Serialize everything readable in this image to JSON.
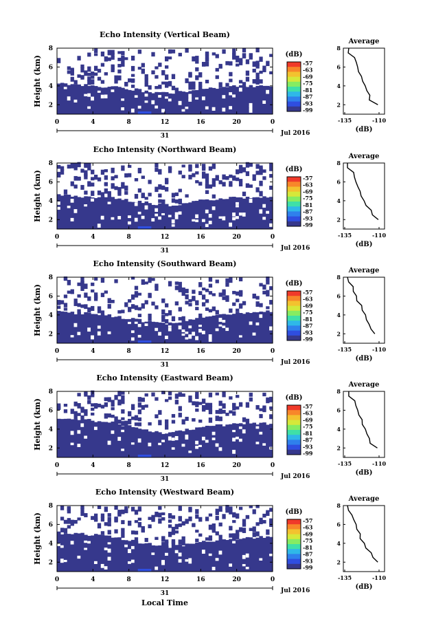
{
  "figure": {
    "xlabel_bottom": "Local Time",
    "colorbar_unit": "(dB)",
    "colorbar_ticks": [
      "-57",
      "-63",
      "-69",
      "-75",
      "-81",
      "-87",
      "-93",
      "-99"
    ],
    "colorbar_colors": [
      "#f03a2a",
      "#f8862a",
      "#f3c22f",
      "#d6e83a",
      "#86ec62",
      "#3fe0a8",
      "#2fb8e8",
      "#2f80ec",
      "#2f4ee0",
      "#36388c"
    ],
    "heatmap_fill": "#36388c",
    "low_fill": "#2f4ee0",
    "avg_title": "Average",
    "avg_xlabel": "(dB)",
    "avg_xticks": [
      "-135",
      "-110"
    ],
    "date_label": "Jul 2016",
    "day_label": "31"
  },
  "chart_data": [
    {
      "type": "heatmap",
      "title": "Echo Intensity (Vertical Beam)",
      "ylabel": "Height (km)",
      "yticks": [
        "8",
        "6",
        "4",
        "2"
      ],
      "xticks": [
        "0",
        "4",
        "8",
        "12",
        "16",
        "20",
        "0"
      ],
      "xlim": [
        0,
        24
      ],
      "ylim": [
        1,
        8
      ],
      "echo_top_km": [
        4.2,
        4.1,
        4.0,
        3.9,
        3.7,
        3.4,
        3.2,
        3.4,
        3.6,
        3.8,
        4.0,
        4.0,
        4.0
      ],
      "average_profile": {
        "height_km": [
          8,
          7,
          6,
          5,
          4,
          3,
          2
        ],
        "db": [
          -133,
          -129,
          -126,
          -123,
          -121,
          -118,
          -112
        ]
      }
    },
    {
      "type": "heatmap",
      "title": "Echo Intensity (Northward Beam)",
      "ylabel": "Height (km)",
      "yticks": [
        "8",
        "6",
        "4",
        "2"
      ],
      "xticks": [
        "0",
        "4",
        "8",
        "12",
        "16",
        "20",
        "0"
      ],
      "xlim": [
        0,
        24
      ],
      "ylim": [
        1,
        8
      ],
      "echo_top_km": [
        4.6,
        4.5,
        4.4,
        4.3,
        4.0,
        3.8,
        3.5,
        3.7,
        4.0,
        4.2,
        4.3,
        4.4,
        4.5
      ],
      "average_profile": {
        "height_km": [
          8,
          7,
          6,
          5,
          4,
          3,
          2
        ],
        "db": [
          -134,
          -130,
          -127,
          -124,
          -121,
          -117,
          -111
        ]
      }
    },
    {
      "type": "heatmap",
      "title": "Echo Intensity (Southward Beam)",
      "ylabel": "Height (km)",
      "yticks": [
        "8",
        "6",
        "4",
        "2"
      ],
      "xticks": [
        "0",
        "4",
        "8",
        "12",
        "16",
        "20",
        "0"
      ],
      "xlim": [
        0,
        24
      ],
      "ylim": [
        1,
        8
      ],
      "echo_top_km": [
        4.3,
        4.2,
        4.1,
        3.9,
        3.6,
        3.3,
        3.1,
        3.3,
        3.7,
        4.0,
        4.2,
        4.3,
        4.4
      ],
      "average_profile": {
        "height_km": [
          8,
          7,
          6,
          5,
          4,
          3,
          2
        ],
        "db": [
          -134,
          -130,
          -127,
          -124,
          -121,
          -118,
          -113
        ]
      }
    },
    {
      "type": "heatmap",
      "title": "Echo Intensity (Eastward Beam)",
      "ylabel": "Height (km)",
      "yticks": [
        "8",
        "6",
        "4",
        "2"
      ],
      "xticks": [
        "0",
        "4",
        "8",
        "12",
        "16",
        "20",
        "0"
      ],
      "xlim": [
        0,
        24
      ],
      "ylim": [
        1,
        8
      ],
      "echo_top_km": [
        5.0,
        5.0,
        4.9,
        4.7,
        4.3,
        3.9,
        3.6,
        3.9,
        4.2,
        4.4,
        4.5,
        4.6,
        4.6
      ],
      "average_profile": {
        "height_km": [
          8,
          7,
          6,
          5,
          4,
          3,
          2
        ],
        "db": [
          -133,
          -129,
          -126,
          -123,
          -120,
          -117,
          -112
        ]
      }
    },
    {
      "type": "heatmap",
      "title": "Echo Intensity (Westward Beam)",
      "ylabel": "Height (km)",
      "yticks": [
        "8",
        "6",
        "4",
        "2"
      ],
      "xticks": [
        "0",
        "4",
        "8",
        "12",
        "16",
        "20",
        "0"
      ],
      "xlim": [
        0,
        24
      ],
      "ylim": [
        1,
        8
      ],
      "echo_top_km": [
        5.1,
        5.0,
        4.9,
        4.7,
        4.3,
        4.0,
        3.6,
        3.8,
        4.1,
        4.3,
        4.5,
        4.6,
        4.7
      ],
      "average_profile": {
        "height_km": [
          8,
          7,
          6,
          5,
          4,
          3,
          2
        ],
        "db": [
          -134,
          -130,
          -127,
          -124,
          -121,
          -117,
          -112
        ]
      }
    }
  ]
}
